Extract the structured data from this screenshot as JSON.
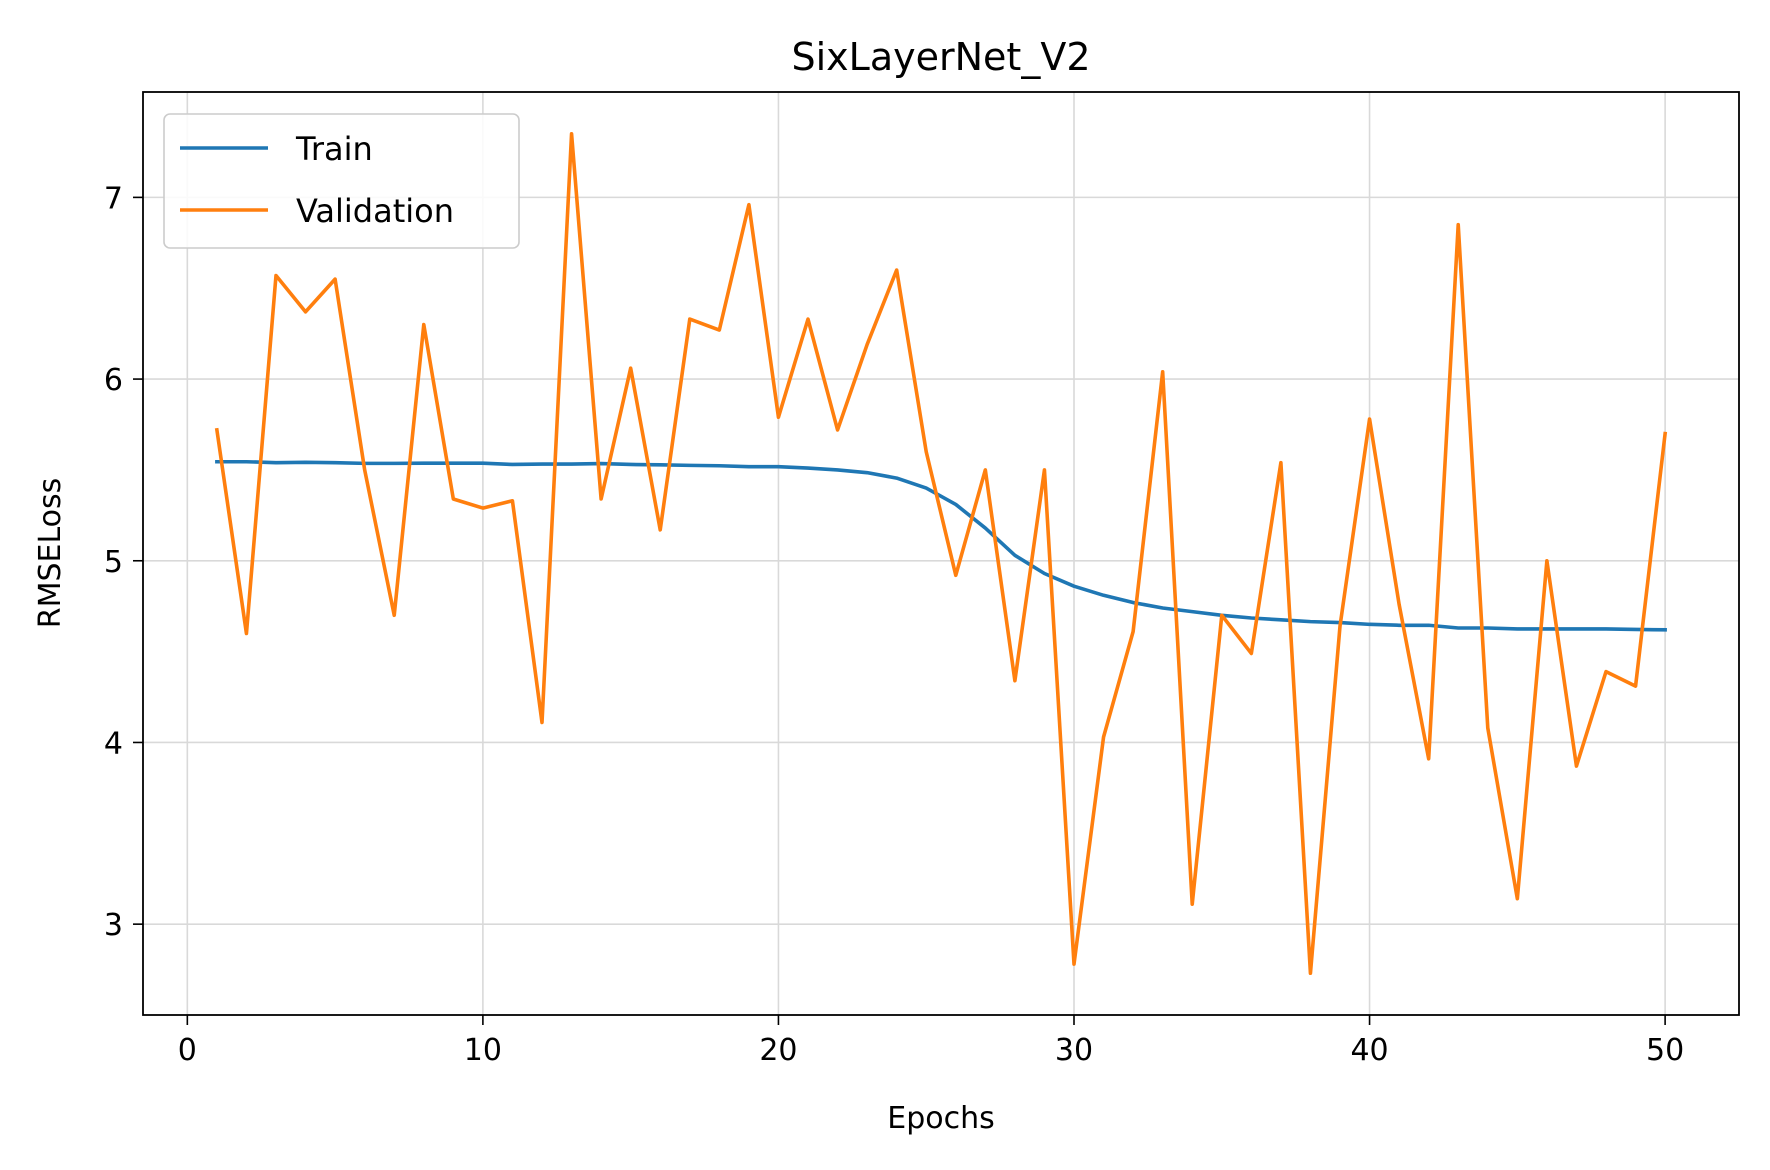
{
  "chart_data": {
    "type": "line",
    "title": "SixLayerNet_V2",
    "xlabel": "Epochs",
    "ylabel": "RMSELoss",
    "xlim": [
      -1.5,
      52.5
    ],
    "ylim": [
      2.5,
      7.58
    ],
    "xticks": [
      0,
      10,
      20,
      30,
      40,
      50
    ],
    "yticks": [
      3,
      4,
      5,
      6,
      7
    ],
    "grid": true,
    "legend_position": "top-left",
    "x": [
      1,
      2,
      3,
      4,
      5,
      6,
      7,
      8,
      9,
      10,
      11,
      12,
      13,
      14,
      15,
      16,
      17,
      18,
      19,
      20,
      21,
      22,
      23,
      24,
      25,
      26,
      27,
      28,
      29,
      30,
      31,
      32,
      33,
      34,
      35,
      36,
      37,
      38,
      39,
      40,
      41,
      42,
      43,
      44,
      45,
      46,
      47,
      48,
      49,
      50
    ],
    "series": [
      {
        "name": "Train",
        "color": "#1f77b4",
        "values": [
          5.545,
          5.545,
          5.54,
          5.542,
          5.54,
          5.536,
          5.536,
          5.537,
          5.537,
          5.537,
          5.53,
          5.532,
          5.532,
          5.535,
          5.53,
          5.528,
          5.525,
          5.523,
          5.518,
          5.518,
          5.51,
          5.5,
          5.485,
          5.455,
          5.4,
          5.31,
          5.18,
          5.03,
          4.93,
          4.86,
          4.81,
          4.77,
          4.74,
          4.72,
          4.7,
          4.685,
          4.675,
          4.665,
          4.66,
          4.65,
          4.645,
          4.645,
          4.63,
          4.63,
          4.625,
          4.625,
          4.625,
          4.625,
          4.622,
          4.62
        ]
      },
      {
        "name": "Validation",
        "color": "#ff7f0e",
        "values": [
          5.72,
          4.6,
          6.57,
          6.37,
          6.55,
          5.5,
          4.7,
          6.3,
          5.34,
          5.29,
          5.33,
          4.11,
          7.35,
          5.34,
          6.06,
          5.17,
          6.33,
          6.27,
          6.96,
          5.79,
          6.33,
          5.72,
          6.19,
          6.6,
          5.6,
          4.92,
          5.5,
          4.34,
          5.5,
          2.78,
          4.03,
          4.61,
          6.04,
          3.11,
          4.7,
          4.49,
          5.54,
          2.73,
          4.64,
          5.78,
          4.76,
          3.91,
          6.85,
          4.08,
          3.14,
          5.0,
          3.87,
          4.39,
          4.31,
          5.7
        ]
      }
    ]
  }
}
